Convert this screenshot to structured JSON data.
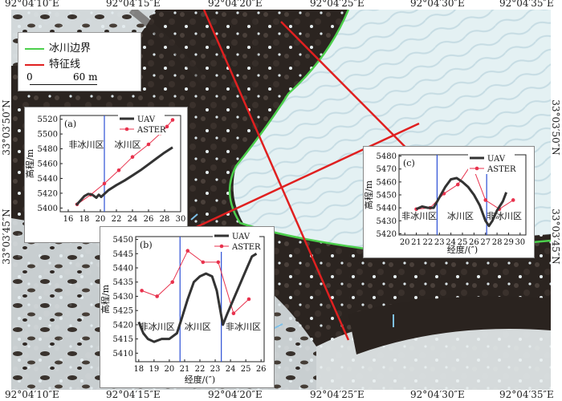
{
  "coords": {
    "top": [
      "92°04′10″E",
      "92°04′15″E",
      "92°04′20″E",
      "92°04′25″E",
      "92°04′30″E",
      "92°04′35″E"
    ],
    "bottom": [
      "92°04′10″E",
      "92°04′15″E",
      "92°04′20″E",
      "92°04′25″E",
      "92°04′30″E",
      "92°04′35″E"
    ],
    "left": [
      "33°03′50″N",
      "33°03′45″N"
    ],
    "right": [
      "33°03′50″N",
      "33°03′45″N"
    ]
  },
  "legend": {
    "items": [
      {
        "label": "冰川边界",
        "color": "#4ccf4c"
      },
      {
        "label": "特征线",
        "color": "#e02020"
      }
    ],
    "scale_zero": "0",
    "scale_label": "60 m"
  },
  "colors": {
    "glacier_boundary": "#4ccf4c",
    "feature_line": "#e02020",
    "uav": "#333333",
    "aster": "#e8324d",
    "divider": "#2b4fd6"
  },
  "chart_data": [
    {
      "type": "line",
      "panel": "(a)",
      "xlabel": "经度/(″)",
      "ylabel": "高程/m",
      "xlim": [
        15,
        30
      ],
      "ylim": [
        5395,
        5525
      ],
      "xticks": [
        16,
        18,
        20,
        22,
        24,
        26,
        28,
        30
      ],
      "yticks": [
        5400,
        5420,
        5440,
        5460,
        5480,
        5500,
        5520
      ],
      "divider_x": [
        20.5
      ],
      "region_labels": [
        "非冰川区",
        "冰川区"
      ],
      "series": [
        {
          "name": "UAV",
          "x": [
            17.0,
            17.5,
            18.0,
            18.5,
            19.0,
            19.5,
            19.8,
            20.1,
            20.5,
            21.0,
            22,
            23,
            24,
            25,
            26,
            27,
            28,
            29
          ],
          "y": [
            5404,
            5410,
            5416,
            5419,
            5418,
            5414,
            5418,
            5415,
            5419,
            5424,
            5431,
            5437,
            5444,
            5451,
            5459,
            5467,
            5475,
            5482
          ]
        },
        {
          "name": "ASTER",
          "x": [
            17.1,
            18.8,
            20.5,
            22.3,
            24.0,
            26.0,
            27.5,
            28.3,
            29.0
          ],
          "y": [
            5405,
            5418,
            5433,
            5451,
            5469,
            5486,
            5501,
            5510,
            5519
          ]
        }
      ]
    },
    {
      "type": "line",
      "panel": "(b)",
      "xlabel": "经度/(″)",
      "ylabel": "高程/m",
      "xlim": [
        17.8,
        26.2
      ],
      "ylim": [
        5407,
        5451
      ],
      "xticks": [
        18,
        19,
        20,
        21,
        22,
        23,
        24,
        25,
        26
      ],
      "yticks": [
        5410,
        5415,
        5420,
        5425,
        5430,
        5435,
        5440,
        5445,
        5450
      ],
      "divider_x": [
        20.7,
        23.4
      ],
      "region_labels": [
        "非冰川区",
        "冰川区",
        "非冰川区"
      ],
      "series": [
        {
          "name": "UAV",
          "x": [
            18.0,
            18.3,
            18.6,
            19.0,
            19.5,
            20.0,
            20.5,
            20.8,
            21.2,
            21.6,
            22.0,
            22.4,
            22.8,
            23.1,
            23.5,
            23.8,
            24.2,
            24.6,
            25.0,
            25.4,
            25.7
          ],
          "y": [
            5421,
            5417,
            5415,
            5414,
            5415,
            5415,
            5417,
            5422,
            5429,
            5435,
            5437,
            5438,
            5437,
            5432,
            5420,
            5424,
            5429,
            5434,
            5439,
            5444,
            5445
          ]
        },
        {
          "name": "ASTER",
          "x": [
            18.2,
            19.2,
            20.2,
            21.2,
            22.2,
            23.2,
            24.2,
            25.2
          ],
          "y": [
            5432,
            5430,
            5435,
            5446,
            5442,
            5442,
            5424,
            5429
          ]
        }
      ]
    },
    {
      "type": "line",
      "panel": "(c)",
      "xlabel": "经度/(″)",
      "ylabel": "高程/m",
      "xlim": [
        19.5,
        30.5
      ],
      "ylim": [
        5419,
        5481
      ],
      "xticks": [
        20,
        21,
        22,
        23,
        24,
        25,
        26,
        27,
        28,
        29,
        30
      ],
      "yticks": [
        5420,
        5430,
        5440,
        5450,
        5460,
        5470,
        5480
      ],
      "divider_x": [
        22.8,
        27.1
      ],
      "region_labels": [
        "非冰川区",
        "冰川区",
        "非冰川区"
      ],
      "series": [
        {
          "name": "UAV",
          "x": [
            21.0,
            21.5,
            22.0,
            22.5,
            23.0,
            23.5,
            24.0,
            24.5,
            25.0,
            25.5,
            26.0,
            26.5,
            27.0,
            27.3,
            27.6,
            28.0,
            28.5,
            28.8
          ],
          "y": [
            5439,
            5441,
            5440,
            5440,
            5448,
            5456,
            5462,
            5463,
            5460,
            5456,
            5450,
            5442,
            5430,
            5426,
            5430,
            5438,
            5445,
            5452
          ]
        },
        {
          "name": "ASTER",
          "x": [
            21.0,
            22.2,
            23.4,
            24.6,
            25.8,
            27.0,
            28.2,
            29.4
          ],
          "y": [
            5439,
            5440,
            5451,
            5458,
            5474,
            5446,
            5439,
            5446
          ]
        }
      ]
    }
  ]
}
